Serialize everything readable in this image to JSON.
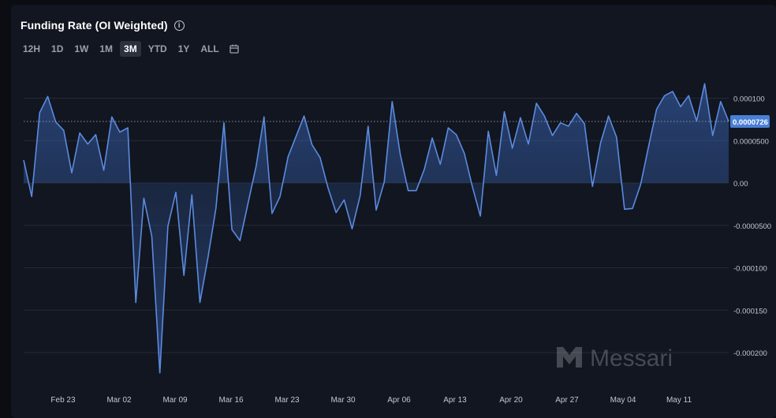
{
  "header": {
    "title": "Funding Rate (OI Weighted)",
    "info_icon": "info-icon",
    "calendar_icon": "calendar-icon"
  },
  "time_ranges": [
    {
      "label": "12H",
      "active": false
    },
    {
      "label": "1D",
      "active": false
    },
    {
      "label": "1W",
      "active": false
    },
    {
      "label": "1M",
      "active": false
    },
    {
      "label": "3M",
      "active": true
    },
    {
      "label": "YTD",
      "active": false
    },
    {
      "label": "1Y",
      "active": false
    },
    {
      "label": "ALL",
      "active": false
    }
  ],
  "watermark": {
    "text": "Messari"
  },
  "colors": {
    "line": "#5b8be0",
    "grid": "#242a36",
    "badge": "#4a7fd6",
    "panel": "#121620"
  },
  "chart_data": {
    "type": "area",
    "x_tick_labels": [
      "Feb 23",
      "Mar 02",
      "Mar 09",
      "Mar 16",
      "Mar 23",
      "Mar 30",
      "Apr 06",
      "Apr 13",
      "Apr 20",
      "Apr 27",
      "May 04",
      "May 11"
    ],
    "y_ticks": [
      0.0001,
      5e-05,
      0,
      -5e-05,
      -0.0001,
      -0.00015,
      -0.0002
    ],
    "y_tick_labels": [
      "0.000100",
      "0.0000500",
      "0.00",
      "-0.0000500",
      "-0.000100",
      "-0.000150",
      "-0.000200"
    ],
    "ylim": [
      -0.000225,
      0.000115
    ],
    "current_value_label": "0.0000726",
    "current_value": 7.26e-05,
    "values": [
      2.7e-05,
      -1.6e-05,
      8.3e-05,
      0.000102,
      7.2e-05,
      6.2e-05,
      1.2e-05,
      5.9e-05,
      4.6e-05,
      5.7e-05,
      1.5e-05,
      7.8e-05,
      6e-05,
      6.5e-05,
      -0.000141,
      -1.8e-05,
      -6.3e-05,
      -0.000224,
      -5.1e-05,
      -1.1e-05,
      -0.000109,
      -1.4e-05,
      -0.000141,
      -8.8e-05,
      -3e-05,
      7.1e-05,
      -5.5e-05,
      -6.8e-05,
      -2.4e-05,
      1.9e-05,
      7.8e-05,
      -3.6e-05,
      -1.6e-05,
      3.1e-05,
      5.5e-05,
      7.9e-05,
      4.5e-05,
      3e-05,
      -6e-06,
      -3.5e-05,
      -2e-05,
      -5.4e-05,
      -1.5e-05,
      6.7e-05,
      -3.2e-05,
      1e-06,
      9.6e-05,
      3.4e-05,
      -9e-06,
      -9e-06,
      1.6e-05,
      5.3e-05,
      2.2e-05,
      6.5e-05,
      5.7e-05,
      3.5e-05,
      -4e-06,
      -3.9e-05,
      6.1e-05,
      9e-06,
      8.4e-05,
      4.1e-05,
      7.7e-05,
      4.6e-05,
      9.4e-05,
      7.9e-05,
      5.6e-05,
      7.1e-05,
      6.7e-05,
      8.2e-05,
      7e-05,
      -4e-06,
      4.7e-05,
      7.9e-05,
      5.4e-05,
      -3.1e-05,
      -3e-05,
      -2e-06,
      4.3e-05,
      8.7e-05,
      0.000103,
      0.000108,
      9e-05,
      0.000103,
      7.3e-05,
      0.000117,
      5.6e-05,
      9.6e-05,
      7.26e-05
    ]
  }
}
